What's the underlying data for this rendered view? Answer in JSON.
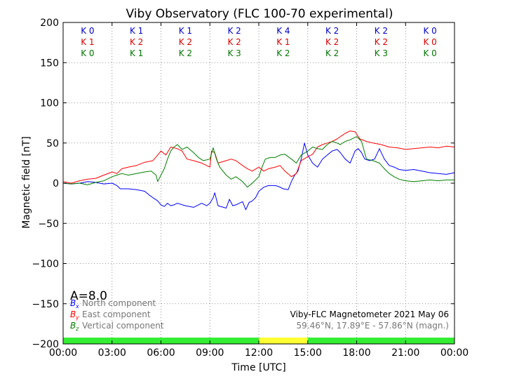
{
  "chart_data": {
    "type": "line",
    "title": "Viby Observatory (FLC 100-70 experimental)",
    "xlabel": "Time [UTC]",
    "ylabel": "Magnetic field [nT]",
    "ylim": [
      -200,
      200
    ],
    "xlim": [
      0,
      24
    ],
    "grid": true,
    "x_ticks": [
      0,
      3,
      6,
      9,
      12,
      15,
      18,
      21,
      24
    ],
    "x_tick_labels": [
      "00:00",
      "03:00",
      "06:00",
      "09:00",
      "12:00",
      "15:00",
      "18:00",
      "21:00",
      "00:00"
    ],
    "y_ticks": [
      200,
      150,
      100,
      50,
      0,
      -50,
      -100,
      -150,
      -200
    ],
    "y_tick_labels": [
      "200",
      "150",
      "100",
      "50",
      "0",
      "−50",
      "−100",
      "−150",
      "−200"
    ],
    "a_index": "A=8.0",
    "k_index": {
      "colors": [
        "#0000cc",
        "#dd0000",
        "#007700"
      ],
      "rows": [
        [
          "K 0",
          "K 1",
          "K 1",
          "K 2",
          "K 4",
          "K 2",
          "K 2",
          "K 0"
        ],
        [
          "K 1",
          "K 2",
          "K 2",
          "K 2",
          "K 1",
          "K 2",
          "K 2",
          "K 0"
        ],
        [
          "K 0",
          "K 1",
          "K 2",
          "K 3",
          "K 2",
          "K 2",
          "K 3",
          "K 0"
        ]
      ]
    },
    "activity_bar": [
      {
        "from": 0,
        "to": 12,
        "color": "#33ee33"
      },
      {
        "from": 12,
        "to": 15,
        "color": "#ffff33"
      },
      {
        "from": 15,
        "to": 24,
        "color": "#33ee33"
      }
    ],
    "legend": {
      "placement": "lower-left",
      "entries": [
        {
          "symbol": "B",
          "sub": "x",
          "label": "North component",
          "color": "#0000ff"
        },
        {
          "symbol": "B",
          "sub": "y",
          "label": "East component",
          "color": "#ff0000"
        },
        {
          "symbol": "B",
          "sub": "z",
          "label": "Vertical component",
          "color": "#008000"
        }
      ]
    },
    "info": {
      "line1": "Viby-FLC Magnetometer 2021 May 06",
      "line2": "59.46°N, 17.89°E - 57.86°N (magn.)"
    },
    "series": [
      {
        "name": "North component",
        "color": "#0000ff",
        "points": [
          [
            0,
            0
          ],
          [
            0.5,
            -1
          ],
          [
            1,
            0
          ],
          [
            1.5,
            2
          ],
          [
            2,
            1
          ],
          [
            2.5,
            -1
          ],
          [
            3,
            0
          ],
          [
            3.3,
            -3
          ],
          [
            3.5,
            -7
          ],
          [
            4,
            -7
          ],
          [
            4.5,
            -8
          ],
          [
            5,
            -10
          ],
          [
            5.3,
            -15
          ],
          [
            5.5,
            -18
          ],
          [
            5.8,
            -22
          ],
          [
            6,
            -27
          ],
          [
            6.2,
            -29
          ],
          [
            6.4,
            -25
          ],
          [
            6.6,
            -28
          ],
          [
            6.8,
            -27
          ],
          [
            7,
            -25
          ],
          [
            7.5,
            -28
          ],
          [
            8,
            -30
          ],
          [
            8.3,
            -27
          ],
          [
            8.5,
            -25
          ],
          [
            8.8,
            -28
          ],
          [
            9,
            -25
          ],
          [
            9.2,
            -18
          ],
          [
            9.3,
            -12
          ],
          [
            9.5,
            -28
          ],
          [
            10,
            -31
          ],
          [
            10.2,
            -20
          ],
          [
            10.4,
            -28
          ],
          [
            10.6,
            -27
          ],
          [
            11,
            -23
          ],
          [
            11.2,
            -33
          ],
          [
            11.4,
            -24
          ],
          [
            11.6,
            -22
          ],
          [
            11.8,
            -18
          ],
          [
            12,
            -10
          ],
          [
            12.3,
            -5
          ],
          [
            12.6,
            -3
          ],
          [
            13,
            -3
          ],
          [
            13.2,
            -4
          ],
          [
            13.5,
            -7
          ],
          [
            13.8,
            -8
          ],
          [
            14,
            2
          ],
          [
            14.2,
            10
          ],
          [
            14.4,
            15
          ],
          [
            14.6,
            30
          ],
          [
            14.8,
            50
          ],
          [
            15,
            35
          ],
          [
            15.3,
            25
          ],
          [
            15.6,
            20
          ],
          [
            15.9,
            30
          ],
          [
            16.2,
            35
          ],
          [
            16.5,
            40
          ],
          [
            16.8,
            42
          ],
          [
            17,
            38
          ],
          [
            17.3,
            30
          ],
          [
            17.6,
            25
          ],
          [
            17.9,
            40
          ],
          [
            18.1,
            43
          ],
          [
            18.3,
            38
          ],
          [
            18.5,
            30
          ],
          [
            18.8,
            28
          ],
          [
            19.1,
            30
          ],
          [
            19.4,
            43
          ],
          [
            19.7,
            30
          ],
          [
            20,
            22
          ],
          [
            20.3,
            20
          ],
          [
            20.6,
            17
          ],
          [
            21,
            16
          ],
          [
            21.5,
            17
          ],
          [
            22,
            15
          ],
          [
            22.5,
            13
          ],
          [
            23,
            12
          ],
          [
            23.5,
            11
          ],
          [
            24,
            13
          ]
        ]
      },
      {
        "name": "East component",
        "color": "#ff0000",
        "points": [
          [
            0,
            2
          ],
          [
            0.5,
            0
          ],
          [
            1,
            3
          ],
          [
            1.5,
            5
          ],
          [
            2,
            6
          ],
          [
            2.5,
            10
          ],
          [
            3,
            14
          ],
          [
            3.3,
            12
          ],
          [
            3.6,
            18
          ],
          [
            4,
            20
          ],
          [
            4.5,
            22
          ],
          [
            5,
            26
          ],
          [
            5.5,
            28
          ],
          [
            5.8,
            35
          ],
          [
            6,
            40
          ],
          [
            6.3,
            35
          ],
          [
            6.6,
            45
          ],
          [
            7,
            43
          ],
          [
            7.3,
            40
          ],
          [
            7.6,
            30
          ],
          [
            8,
            28
          ],
          [
            8.5,
            25
          ],
          [
            8.8,
            22
          ],
          [
            9,
            20
          ],
          [
            9.1,
            40
          ],
          [
            9.3,
            38
          ],
          [
            9.5,
            25
          ],
          [
            10,
            28
          ],
          [
            10.3,
            30
          ],
          [
            10.6,
            28
          ],
          [
            11,
            22
          ],
          [
            11.3,
            18
          ],
          [
            11.6,
            15
          ],
          [
            12,
            20
          ],
          [
            12.3,
            15
          ],
          [
            12.6,
            18
          ],
          [
            13,
            20
          ],
          [
            13.3,
            22
          ],
          [
            13.6,
            15
          ],
          [
            14,
            8
          ],
          [
            14.3,
            12
          ],
          [
            14.6,
            28
          ],
          [
            15,
            33
          ],
          [
            15.3,
            36
          ],
          [
            15.6,
            45
          ],
          [
            15.9,
            48
          ],
          [
            16.2,
            50
          ],
          [
            16.5,
            52
          ],
          [
            16.8,
            55
          ],
          [
            17,
            58
          ],
          [
            17.3,
            62
          ],
          [
            17.6,
            65
          ],
          [
            17.9,
            64
          ],
          [
            18.2,
            55
          ],
          [
            18.6,
            52
          ],
          [
            19,
            50
          ],
          [
            19.5,
            48
          ],
          [
            20,
            45
          ],
          [
            20.5,
            44
          ],
          [
            21,
            42
          ],
          [
            21.5,
            43
          ],
          [
            22,
            44
          ],
          [
            22.5,
            45
          ],
          [
            23,
            44
          ],
          [
            23.5,
            46
          ],
          [
            24,
            45
          ]
        ]
      },
      {
        "name": "Vertical component",
        "color": "#008000",
        "points": [
          [
            0,
            0
          ],
          [
            0.5,
            -1
          ],
          [
            1,
            0
          ],
          [
            1.5,
            -2
          ],
          [
            2,
            1
          ],
          [
            2.5,
            3
          ],
          [
            3,
            8
          ],
          [
            3.3,
            10
          ],
          [
            3.6,
            12
          ],
          [
            4,
            10
          ],
          [
            4.5,
            12
          ],
          [
            5,
            14
          ],
          [
            5.4,
            15
          ],
          [
            5.7,
            10
          ],
          [
            5.8,
            2
          ],
          [
            6,
            10
          ],
          [
            6.2,
            18
          ],
          [
            6.4,
            30
          ],
          [
            6.6,
            40
          ],
          [
            6.8,
            45
          ],
          [
            7,
            48
          ],
          [
            7.3,
            42
          ],
          [
            7.6,
            45
          ],
          [
            8,
            38
          ],
          [
            8.3,
            32
          ],
          [
            8.6,
            28
          ],
          [
            9,
            30
          ],
          [
            9.2,
            44
          ],
          [
            9.4,
            30
          ],
          [
            9.6,
            20
          ],
          [
            10,
            10
          ],
          [
            10.3,
            5
          ],
          [
            10.6,
            8
          ],
          [
            11,
            2
          ],
          [
            11.3,
            -5
          ],
          [
            11.6,
            0
          ],
          [
            12,
            8
          ],
          [
            12.2,
            20
          ],
          [
            12.4,
            30
          ],
          [
            12.7,
            32
          ],
          [
            13,
            32
          ],
          [
            13.3,
            35
          ],
          [
            13.6,
            36
          ],
          [
            14,
            30
          ],
          [
            14.3,
            25
          ],
          [
            14.6,
            35
          ],
          [
            15,
            40
          ],
          [
            15.3,
            45
          ],
          [
            15.6,
            43
          ],
          [
            15.9,
            42
          ],
          [
            16.2,
            48
          ],
          [
            16.5,
            52
          ],
          [
            16.8,
            50
          ],
          [
            17,
            48
          ],
          [
            17.3,
            52
          ],
          [
            17.6,
            54
          ],
          [
            18,
            58
          ],
          [
            18.3,
            52
          ],
          [
            18.6,
            30
          ],
          [
            19,
            28
          ],
          [
            19.4,
            25
          ],
          [
            19.7,
            18
          ],
          [
            20,
            12
          ],
          [
            20.3,
            8
          ],
          [
            20.6,
            5
          ],
          [
            21,
            3
          ],
          [
            21.5,
            2
          ],
          [
            22,
            3
          ],
          [
            22.5,
            4
          ],
          [
            23,
            3
          ],
          [
            23.5,
            4
          ],
          [
            24,
            4
          ]
        ]
      }
    ]
  }
}
